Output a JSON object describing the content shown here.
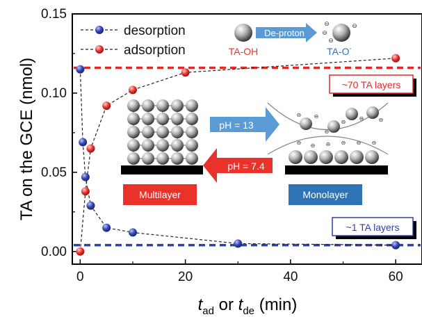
{
  "chart_data": {
    "type": "scatter",
    "xlabel": {
      "t1": "t",
      "s1": "ad",
      "mid": " or ",
      "t2": "t",
      "s2": "de",
      "tail": " (min)"
    },
    "ylabel": "TA on the GCE (nmol)",
    "xlim": [
      -1.5,
      65
    ],
    "ylim": [
      -0.008,
      0.15
    ],
    "xticks": [
      0,
      20,
      40,
      60
    ],
    "yticks": [
      0.0,
      0.05,
      0.1,
      0.15
    ],
    "ytick_labels": [
      "0.00",
      "0.05",
      "0.10",
      "0.15"
    ],
    "series": [
      {
        "name": "desorption",
        "color": "#2f3fa8",
        "x": [
          0,
          0.5,
          1,
          2,
          5,
          10,
          30,
          60
        ],
        "y": [
          0.115,
          0.069,
          0.047,
          0.029,
          0.015,
          0.012,
          0.005,
          0.004
        ]
      },
      {
        "name": "adsorption",
        "color": "#e02a2a",
        "x": [
          0,
          1,
          2,
          5,
          10,
          20,
          60
        ],
        "y": [
          0.0,
          0.038,
          0.065,
          0.092,
          0.102,
          0.113,
          0.122
        ]
      }
    ],
    "reference_lines": [
      {
        "y": 0.116,
        "color": "#e02a2a",
        "label": "~70 TA layers"
      },
      {
        "y": 0.004,
        "color": "#2f3fa8",
        "label": "~1 TA layers"
      }
    ],
    "legend_position": "top-left"
  },
  "inset": {
    "deproton_label": "De-proton",
    "ta_oh_label": "TA-OH",
    "ta_o_label": "TA-O",
    "ta_o_superscript": "-",
    "ph_high_label": "pH = 13",
    "ph_low_label": "pH = 7.4",
    "multilayer_label": "Multilayer",
    "monolayer_label": "Monolayer",
    "minus_sign": "⊖"
  },
  "colors": {
    "blue_box": "#2e74b5",
    "red_box": "#e8322b",
    "arrow_blue": "#5b9bd5",
    "arrow_red": "#e8322b"
  }
}
